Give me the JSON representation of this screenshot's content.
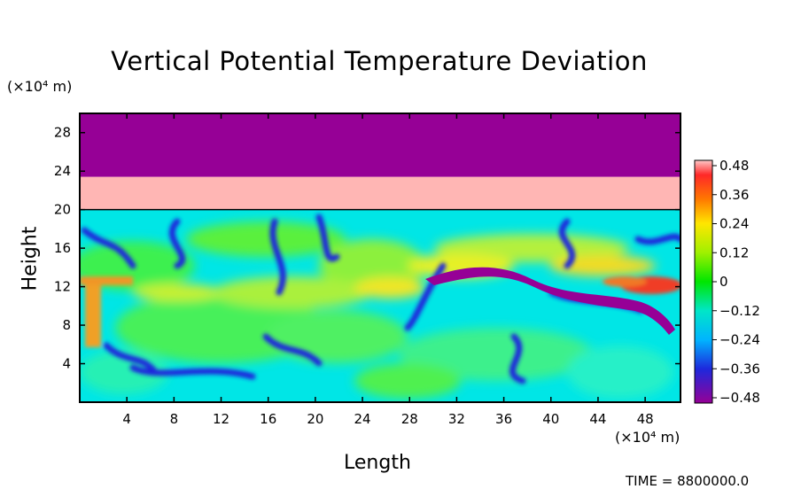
{
  "chart_data": {
    "type": "heatmap",
    "title": "Vertical Potential Temperature Deviation",
    "xlabel": "Length",
    "ylabel": "Height",
    "x_units": "(×10⁴ m)",
    "y_units": "(×10⁴ m)",
    "x_ticks": [
      4,
      8,
      12,
      16,
      20,
      24,
      28,
      32,
      36,
      40,
      44,
      48
    ],
    "y_ticks": [
      4,
      8,
      12,
      16,
      20,
      24,
      28
    ],
    "xlim": [
      0,
      51
    ],
    "ylim": [
      0,
      30
    ],
    "colorbar_ticks": [
      "0.48",
      "0.36",
      "0.24",
      "0.12",
      "0",
      "−0.12",
      "−0.24",
      "−0.36",
      "−0.48"
    ],
    "colorbar_range": [
      -0.48,
      0.48
    ],
    "layers": [
      {
        "name": "top band",
        "y_range": [
          23.4,
          30
        ],
        "value": -0.48
      },
      {
        "name": "upper band",
        "y_range": [
          20,
          23.4
        ],
        "value": 0.48
      }
    ],
    "footer": "TIME = 8800000.0"
  },
  "colors": {
    "purple": "#960096",
    "pink": "#ffb6b4",
    "cyan": "#00e6e6",
    "green": "#32e632",
    "red": "#f03c28",
    "blue": "#1e28dc"
  }
}
